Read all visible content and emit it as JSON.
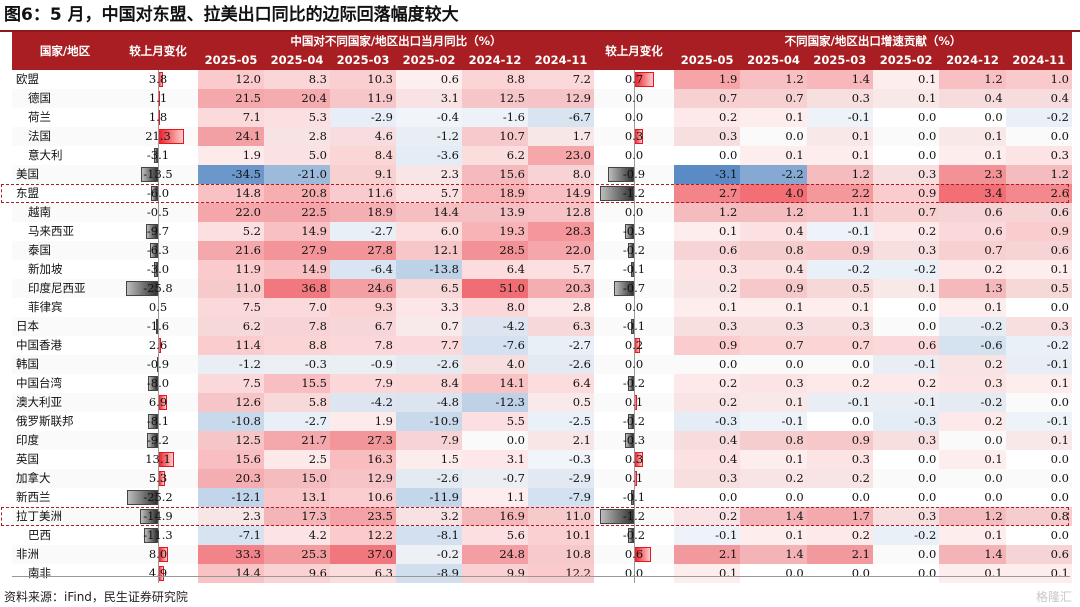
{
  "title": "图6：5 月，中国对东盟、拉美出口同比的边际回落幅度较大",
  "source": "资料来源：iFind，民生证券研究院",
  "watermark": "格隆汇",
  "headers": {
    "region": "国家/地区",
    "delta": "较上月变化",
    "group1": "中国对不同国家/地区出口当月同比（%）",
    "group2": "不同国家/地区出口增速贡献（%）",
    "months": [
      "2025-05",
      "2025-04",
      "2025-03",
      "2025-02",
      "2024-12",
      "2024-11"
    ]
  },
  "rows": [
    {
      "name": "欧盟",
      "indent": false,
      "d1": "3.8",
      "g1": [
        "12.0",
        "8.3",
        "10.3",
        "0.6",
        "8.8",
        "7.2"
      ],
      "d2": "0.7",
      "g2": [
        "1.9",
        "1.2",
        "1.4",
        "0.1",
        "1.2",
        "1.0"
      ]
    },
    {
      "name": "德国",
      "indent": true,
      "d1": "1.1",
      "g1": [
        "21.5",
        "20.4",
        "11.9",
        "3.1",
        "12.5",
        "12.9"
      ],
      "d2": "0.0",
      "g2": [
        "0.7",
        "0.7",
        "0.3",
        "0.1",
        "0.4",
        "0.4"
      ]
    },
    {
      "name": "荷兰",
      "indent": true,
      "d1": "1.8",
      "g1": [
        "7.1",
        "5.3",
        "-2.9",
        "-0.4",
        "-1.6",
        "-6.7"
      ],
      "d2": "0.0",
      "g2": [
        "0.2",
        "0.1",
        "-0.1",
        "0.0",
        "0.0",
        "-0.2"
      ]
    },
    {
      "name": "法国",
      "indent": true,
      "d1": "21.3",
      "g1": [
        "24.1",
        "2.8",
        "4.6",
        "-1.2",
        "10.7",
        "1.7"
      ],
      "d2": "0.3",
      "g2": [
        "0.3",
        "0.0",
        "0.1",
        "0.0",
        "0.1",
        "0.0"
      ]
    },
    {
      "name": "意大利",
      "indent": true,
      "d1": "-3.1",
      "g1": [
        "1.9",
        "5.0",
        "8.4",
        "-3.6",
        "6.2",
        "23.0"
      ],
      "d2": "0.0",
      "g2": [
        "0.0",
        "0.1",
        "0.1",
        "0.0",
        "0.1",
        "0.3"
      ]
    },
    {
      "name": "美国",
      "indent": false,
      "d1": "-13.5",
      "g1": [
        "-34.5",
        "-21.0",
        "9.1",
        "2.3",
        "15.6",
        "8.0"
      ],
      "d2": "-0.9",
      "g2": [
        "-3.1",
        "-2.2",
        "1.2",
        "0.3",
        "2.3",
        "1.2"
      ]
    },
    {
      "name": "东盟",
      "indent": false,
      "d1": "-6.0",
      "g1": [
        "14.8",
        "20.8",
        "11.6",
        "5.7",
        "18.9",
        "14.9"
      ],
      "d2": "-1.2",
      "g2": [
        "2.7",
        "4.0",
        "2.2",
        "0.9",
        "3.4",
        "2.6"
      ]
    },
    {
      "name": "越南",
      "indent": true,
      "d1": "-0.5",
      "g1": [
        "22.0",
        "22.5",
        "18.9",
        "14.4",
        "13.9",
        "12.8"
      ],
      "d2": "0.0",
      "g2": [
        "1.2",
        "1.2",
        "1.1",
        "0.7",
        "0.6",
        "0.6"
      ]
    },
    {
      "name": "马来西亚",
      "indent": true,
      "d1": "-9.7",
      "g1": [
        "5.2",
        "14.9",
        "-2.7",
        "6.0",
        "19.3",
        "28.3"
      ],
      "d2": "-0.3",
      "g2": [
        "0.1",
        "0.4",
        "-0.1",
        "0.2",
        "0.6",
        "0.9"
      ]
    },
    {
      "name": "泰国",
      "indent": true,
      "d1": "-6.3",
      "g1": [
        "21.6",
        "27.9",
        "27.8",
        "12.1",
        "28.5",
        "22.0"
      ],
      "d2": "-0.2",
      "g2": [
        "0.6",
        "0.8",
        "0.9",
        "0.3",
        "0.7",
        "0.6"
      ]
    },
    {
      "name": "新加坡",
      "indent": true,
      "d1": "-3.0",
      "g1": [
        "11.9",
        "14.9",
        "-6.4",
        "-13.8",
        "6.4",
        "5.7"
      ],
      "d2": "-0.1",
      "g2": [
        "0.3",
        "0.4",
        "-0.2",
        "-0.2",
        "0.2",
        "0.1"
      ]
    },
    {
      "name": "印度尼西亚",
      "indent": true,
      "d1": "-25.8",
      "g1": [
        "11.0",
        "36.8",
        "24.6",
        "6.5",
        "51.0",
        "20.3"
      ],
      "d2": "-0.7",
      "g2": [
        "0.2",
        "0.9",
        "0.5",
        "0.1",
        "1.3",
        "0.5"
      ]
    },
    {
      "name": "菲律宾",
      "indent": true,
      "d1": "0.5",
      "g1": [
        "7.5",
        "7.0",
        "9.3",
        "3.3",
        "8.0",
        "2.8"
      ],
      "d2": "0.0",
      "g2": [
        "0.1",
        "0.1",
        "0.1",
        "0.0",
        "0.1",
        "0.0"
      ]
    },
    {
      "name": "日本",
      "indent": false,
      "d1": "-1.6",
      "g1": [
        "6.2",
        "7.8",
        "6.7",
        "0.7",
        "-4.2",
        "6.3"
      ],
      "d2": "-0.1",
      "g2": [
        "0.3",
        "0.3",
        "0.3",
        "0.0",
        "-0.2",
        "0.3"
      ]
    },
    {
      "name": "中国香港",
      "indent": false,
      "d1": "2.6",
      "g1": [
        "11.4",
        "8.8",
        "7.8",
        "7.7",
        "-7.6",
        "-2.7"
      ],
      "d2": "0.2",
      "g2": [
        "0.9",
        "0.7",
        "0.7",
        "0.6",
        "-0.6",
        "-0.2"
      ]
    },
    {
      "name": "韩国",
      "indent": false,
      "d1": "-0.9",
      "g1": [
        "-1.2",
        "-0.3",
        "-0.9",
        "-2.6",
        "4.0",
        "-2.6"
      ],
      "d2": "0.0",
      "g2": [
        "0.0",
        "0.0",
        "0.0",
        "-0.1",
        "0.2",
        "-0.1"
      ]
    },
    {
      "name": "中国台湾",
      "indent": false,
      "d1": "-8.0",
      "g1": [
        "7.5",
        "15.5",
        "7.9",
        "8.4",
        "14.1",
        "6.4"
      ],
      "d2": "-0.2",
      "g2": [
        "0.2",
        "0.3",
        "0.2",
        "0.2",
        "0.3",
        "0.1"
      ]
    },
    {
      "name": "澳大利亚",
      "indent": false,
      "d1": "6.9",
      "g1": [
        "12.6",
        "5.8",
        "-4.2",
        "-4.8",
        "-12.3",
        "0.5"
      ],
      "d2": "0.1",
      "g2": [
        "0.2",
        "0.1",
        "-0.1",
        "-0.1",
        "-0.2",
        "0.0"
      ]
    },
    {
      "name": "俄罗斯联邦",
      "indent": false,
      "d1": "-8.1",
      "g1": [
        "-10.8",
        "-2.7",
        "1.9",
        "-10.9",
        "5.5",
        "-2.5"
      ],
      "d2": "-0.2",
      "g2": [
        "-0.3",
        "-0.1",
        "0.0",
        "-0.3",
        "0.2",
        "-0.1"
      ]
    },
    {
      "name": "印度",
      "indent": false,
      "d1": "-9.2",
      "g1": [
        "12.5",
        "21.7",
        "27.3",
        "7.9",
        "0.0",
        "2.1"
      ],
      "d2": "-0.3",
      "g2": [
        "0.4",
        "0.8",
        "0.9",
        "0.3",
        "0.0",
        "0.1"
      ]
    },
    {
      "name": "英国",
      "indent": false,
      "d1": "13.1",
      "g1": [
        "15.6",
        "2.5",
        "16.3",
        "1.5",
        "3.1",
        "-0.3"
      ],
      "d2": "0.3",
      "g2": [
        "0.4",
        "0.1",
        "0.3",
        "0.0",
        "0.1",
        "0.0"
      ]
    },
    {
      "name": "加拿大",
      "indent": false,
      "d1": "5.3",
      "g1": [
        "20.3",
        "15.0",
        "12.9",
        "-2.6",
        "-0.7",
        "-2.9"
      ],
      "d2": "0.1",
      "g2": [
        "0.3",
        "0.2",
        "0.2",
        "0.0",
        "0.0",
        "0.0"
      ]
    },
    {
      "name": "新西兰",
      "indent": false,
      "d1": "-25.2",
      "g1": [
        "-12.1",
        "13.1",
        "10.6",
        "-11.9",
        "1.1",
        "-7.9"
      ],
      "d2": "-0.1",
      "g2": [
        "0.0",
        "0.0",
        "0.0",
        "0.0",
        "0.0",
        "0.0"
      ]
    },
    {
      "name": "拉丁美洲",
      "indent": false,
      "d1": "-14.9",
      "g1": [
        "2.3",
        "17.3",
        "23.5",
        "3.2",
        "16.9",
        "11.0"
      ],
      "d2": "-1.2",
      "g2": [
        "0.2",
        "1.4",
        "1.7",
        "0.3",
        "1.2",
        "0.8"
      ]
    },
    {
      "name": "巴西",
      "indent": true,
      "d1": "-11.3",
      "g1": [
        "-7.1",
        "4.2",
        "12.2",
        "-8.1",
        "5.6",
        "10.1"
      ],
      "d2": "-0.2",
      "g2": [
        "-0.1",
        "0.1",
        "0.2",
        "-0.2",
        "0.1",
        "0.0"
      ]
    },
    {
      "name": "非洲",
      "indent": false,
      "d1": "8.0",
      "g1": [
        "33.3",
        "25.3",
        "37.0",
        "-0.2",
        "24.8",
        "10.8"
      ],
      "d2": "0.6",
      "g2": [
        "2.1",
        "1.4",
        "2.1",
        "0.0",
        "1.4",
        "0.6"
      ]
    },
    {
      "name": "南非",
      "indent": true,
      "d1": "4.9",
      "g1": [
        "14.4",
        "9.6",
        "6.3",
        "-8.9",
        "9.9",
        "12.2"
      ],
      "d2": "0.0",
      "g2": [
        "0.1",
        "0.0",
        "0.0",
        "0.0",
        "0.1",
        "0.1"
      ]
    }
  ],
  "highlight_rows": [
    "东盟",
    "拉丁美洲"
  ],
  "colors": {
    "header": "#a81e22",
    "positive": "#e8141e",
    "negative": "#2f6db5",
    "bar_negative": "#4a4a4a",
    "highlight_border": "#a81e22"
  }
}
